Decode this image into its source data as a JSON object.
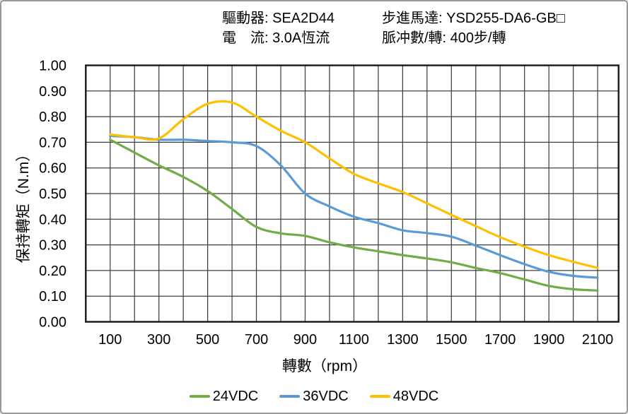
{
  "header": {
    "driver_label_value": "驅動器: SEA2D44",
    "current_label_value": "電　流: 3.0A恆流",
    "motor_label_value": "步進馬達: YSD255-DA6-GB□",
    "pulses_label_value": "脈冲數/轉: 400步/轉"
  },
  "chart_data": {
    "type": "line",
    "title": "",
    "xlabel": "轉數（rpm）",
    "ylabel": "保持轉矩（N.m）",
    "x": [
      100,
      200,
      300,
      400,
      500,
      600,
      700,
      800,
      900,
      1000,
      1100,
      1200,
      1300,
      1400,
      1500,
      1600,
      1700,
      1800,
      1900,
      2000,
      2100
    ],
    "series": [
      {
        "name": "24VDC",
        "color": "#70AD47",
        "values": [
          0.71,
          0.66,
          0.61,
          0.565,
          0.51,
          0.44,
          0.37,
          0.345,
          0.335,
          0.31,
          0.29,
          0.275,
          0.26,
          0.247,
          0.232,
          0.21,
          0.19,
          0.165,
          0.14,
          0.127,
          0.122
        ]
      },
      {
        "name": "36VDC",
        "color": "#5B9BD5",
        "values": [
          0.725,
          0.72,
          0.71,
          0.71,
          0.705,
          0.7,
          0.685,
          0.61,
          0.5,
          0.45,
          0.41,
          0.385,
          0.357,
          0.346,
          0.332,
          0.297,
          0.26,
          0.225,
          0.195,
          0.179,
          0.172
        ]
      },
      {
        "name": "48VDC",
        "color": "#FFC000",
        "values": [
          0.73,
          0.72,
          0.715,
          0.79,
          0.85,
          0.855,
          0.8,
          0.745,
          0.7,
          0.637,
          0.577,
          0.54,
          0.506,
          0.462,
          0.417,
          0.373,
          0.33,
          0.293,
          0.26,
          0.234,
          0.21
        ]
      }
    ],
    "xlim": [
      0,
      2186
    ],
    "ylim": [
      0,
      1
    ],
    "x_gridline_step": 100,
    "y_gridline_step": 0.1,
    "xtick_values": [
      100,
      300,
      500,
      700,
      900,
      1100,
      1300,
      1500,
      1700,
      1900,
      2100
    ],
    "ytick_labels": [
      "0.00",
      "0.10",
      "0.20",
      "0.30",
      "0.40",
      "0.50",
      "0.60",
      "0.70",
      "0.80",
      "0.90",
      "1.00"
    ],
    "grid": true,
    "legend_position": "bottom"
  },
  "legend": {
    "items": [
      {
        "label": "24VDC",
        "color": "#70AD47"
      },
      {
        "label": "36VDC",
        "color": "#5B9BD5"
      },
      {
        "label": "48VDC",
        "color": "#FFC000"
      }
    ]
  },
  "style_colors": {
    "grid": "#3f3f3f",
    "plot_border": "#171717",
    "text": "#000000"
  }
}
